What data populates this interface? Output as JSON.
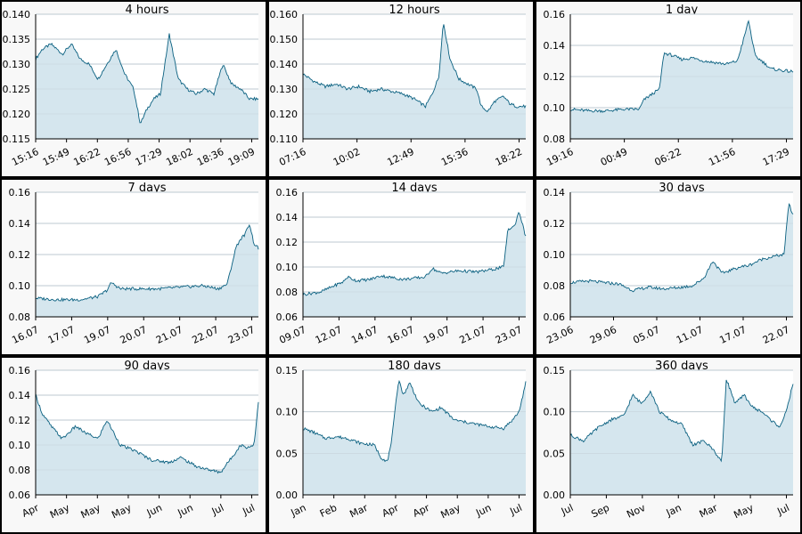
{
  "colors": {
    "line": "#0a6080",
    "fill": "#d5e6ee",
    "grid": "#bfcbd1",
    "panel_bg": "#f8f8f8",
    "plot_bg": "#ffffff"
  },
  "chart_data": [
    {
      "type": "area",
      "title": "4 hours",
      "yticks": [
        "0.115",
        "0.120",
        "0.125",
        "0.130",
        "0.135",
        "0.140"
      ],
      "ylim": [
        0.115,
        0.14
      ],
      "xticks": [
        "15:16",
        "15:49",
        "16:22",
        "16:56",
        "17:29",
        "18:02",
        "18:36",
        "19:09"
      ],
      "x": [
        0,
        0.03,
        0.07,
        0.12,
        0.16,
        0.2,
        0.24,
        0.28,
        0.32,
        0.36,
        0.4,
        0.44,
        0.47,
        0.5,
        0.53,
        0.56,
        0.6,
        0.64,
        0.68,
        0.72,
        0.76,
        0.8,
        0.84,
        0.88,
        0.92,
        0.96,
        1
      ],
      "y": [
        0.131,
        0.133,
        0.134,
        0.132,
        0.134,
        0.131,
        0.13,
        0.127,
        0.13,
        0.133,
        0.128,
        0.125,
        0.118,
        0.121,
        0.123,
        0.124,
        0.136,
        0.127,
        0.125,
        0.124,
        0.125,
        0.124,
        0.13,
        0.126,
        0.125,
        0.123,
        0.123
      ]
    },
    {
      "type": "area",
      "title": "12 hours",
      "yticks": [
        "0.110",
        "0.120",
        "0.130",
        "0.140",
        "0.150",
        "0.160"
      ],
      "ylim": [
        0.11,
        0.16
      ],
      "xticks": [
        "07:16",
        "10:02",
        "12:49",
        "15:36",
        "18:22"
      ],
      "x": [
        0,
        0.05,
        0.1,
        0.15,
        0.2,
        0.25,
        0.3,
        0.35,
        0.4,
        0.45,
        0.5,
        0.55,
        0.58,
        0.61,
        0.63,
        0.66,
        0.7,
        0.74,
        0.78,
        0.8,
        0.83,
        0.86,
        0.9,
        0.93,
        0.96,
        1
      ],
      "y": [
        0.136,
        0.133,
        0.131,
        0.132,
        0.13,
        0.131,
        0.129,
        0.13,
        0.129,
        0.128,
        0.126,
        0.123,
        0.128,
        0.135,
        0.157,
        0.142,
        0.134,
        0.132,
        0.13,
        0.123,
        0.121,
        0.125,
        0.127,
        0.124,
        0.123,
        0.123
      ]
    },
    {
      "type": "area",
      "title": "1 day",
      "yticks": [
        "0.08",
        "0.10",
        "0.12",
        "0.14",
        "0.16"
      ],
      "ylim": [
        0.08,
        0.16
      ],
      "xticks": [
        "19:16",
        "00:49",
        "06:22",
        "11:56",
        "17:29"
      ],
      "x": [
        0,
        0.08,
        0.16,
        0.24,
        0.31,
        0.33,
        0.36,
        0.4,
        0.42,
        0.45,
        0.5,
        0.55,
        0.6,
        0.65,
        0.7,
        0.75,
        0.78,
        0.8,
        0.83,
        0.86,
        0.9,
        0.95,
        1
      ],
      "y": [
        0.099,
        0.098,
        0.098,
        0.099,
        0.099,
        0.105,
        0.108,
        0.112,
        0.135,
        0.134,
        0.131,
        0.132,
        0.13,
        0.129,
        0.128,
        0.13,
        0.145,
        0.156,
        0.133,
        0.13,
        0.125,
        0.124,
        0.123
      ]
    },
    {
      "type": "area",
      "title": "7 days",
      "yticks": [
        "0.08",
        "0.10",
        "0.12",
        "0.14",
        "0.16"
      ],
      "ylim": [
        0.08,
        0.16
      ],
      "xticks": [
        "16.07",
        "17.07",
        "19.07",
        "20.07",
        "21.07",
        "22.07",
        "23.07"
      ],
      "x": [
        0,
        0.1,
        0.2,
        0.28,
        0.32,
        0.34,
        0.38,
        0.45,
        0.55,
        0.65,
        0.75,
        0.82,
        0.86,
        0.9,
        0.92,
        0.94,
        0.96,
        0.98,
        1
      ],
      "y": [
        0.092,
        0.091,
        0.091,
        0.093,
        0.097,
        0.102,
        0.098,
        0.098,
        0.098,
        0.099,
        0.1,
        0.098,
        0.101,
        0.125,
        0.13,
        0.133,
        0.14,
        0.127,
        0.124
      ]
    },
    {
      "type": "area",
      "title": "14 days",
      "yticks": [
        "0.06",
        "0.08",
        "0.10",
        "0.12",
        "0.14",
        "0.16"
      ],
      "ylim": [
        0.06,
        0.16
      ],
      "xticks": [
        "09.07",
        "12.07",
        "14.07",
        "16.07",
        "19.07",
        "21.07",
        "23.07"
      ],
      "x": [
        0,
        0.08,
        0.14,
        0.18,
        0.2,
        0.24,
        0.3,
        0.35,
        0.45,
        0.55,
        0.58,
        0.62,
        0.7,
        0.78,
        0.85,
        0.9,
        0.92,
        0.95,
        0.97,
        1
      ],
      "y": [
        0.078,
        0.08,
        0.085,
        0.088,
        0.092,
        0.089,
        0.09,
        0.093,
        0.09,
        0.092,
        0.099,
        0.095,
        0.097,
        0.096,
        0.098,
        0.1,
        0.13,
        0.133,
        0.145,
        0.124
      ]
    },
    {
      "type": "area",
      "title": "30 days",
      "yticks": [
        "0.06",
        "0.08",
        "0.10",
        "0.12",
        "0.14"
      ],
      "ylim": [
        0.06,
        0.14
      ],
      "xticks": [
        "23.06",
        "29.06",
        "05.07",
        "11.07",
        "17.07",
        "22.07"
      ],
      "x": [
        0,
        0.08,
        0.15,
        0.22,
        0.28,
        0.35,
        0.42,
        0.5,
        0.55,
        0.6,
        0.64,
        0.68,
        0.72,
        0.76,
        0.8,
        0.86,
        0.92,
        0.96,
        0.98,
        1
      ],
      "y": [
        0.082,
        0.083,
        0.082,
        0.081,
        0.077,
        0.079,
        0.078,
        0.079,
        0.08,
        0.085,
        0.096,
        0.088,
        0.09,
        0.092,
        0.093,
        0.097,
        0.099,
        0.1,
        0.133,
        0.125
      ]
    },
    {
      "type": "area",
      "title": "90 days",
      "yticks": [
        "0.06",
        "0.08",
        "0.10",
        "0.12",
        "0.14",
        "0.16"
      ],
      "ylim": [
        0.06,
        0.16
      ],
      "xticks": [
        "Apr",
        "May",
        "May",
        "May",
        "Jun",
        "Jun",
        "Jul",
        "Jul"
      ],
      "x": [
        0,
        0.03,
        0.07,
        0.12,
        0.18,
        0.22,
        0.28,
        0.32,
        0.38,
        0.45,
        0.52,
        0.6,
        0.65,
        0.72,
        0.78,
        0.83,
        0.88,
        0.92,
        0.95,
        0.98,
        1
      ],
      "y": [
        0.14,
        0.125,
        0.115,
        0.105,
        0.115,
        0.11,
        0.105,
        0.12,
        0.1,
        0.095,
        0.088,
        0.086,
        0.09,
        0.083,
        0.08,
        0.078,
        0.09,
        0.1,
        0.098,
        0.1,
        0.135
      ]
    },
    {
      "type": "area",
      "title": "180 days",
      "yticks": [
        "0.00",
        "0.05",
        "0.10",
        "0.15"
      ],
      "ylim": [
        0,
        0.15
      ],
      "xticks": [
        "Jan",
        "Feb",
        "Mar",
        "Apr",
        "Apr",
        "May",
        "Jun",
        "Jul"
      ],
      "x": [
        0,
        0.05,
        0.1,
        0.15,
        0.2,
        0.26,
        0.32,
        0.35,
        0.38,
        0.4,
        0.43,
        0.45,
        0.48,
        0.52,
        0.58,
        0.62,
        0.68,
        0.72,
        0.78,
        0.84,
        0.9,
        0.94,
        0.97,
        1
      ],
      "y": [
        0.08,
        0.075,
        0.068,
        0.07,
        0.068,
        0.062,
        0.06,
        0.045,
        0.04,
        0.07,
        0.14,
        0.12,
        0.135,
        0.11,
        0.1,
        0.105,
        0.09,
        0.088,
        0.085,
        0.082,
        0.08,
        0.09,
        0.1,
        0.135
      ]
    },
    {
      "type": "area",
      "title": "360 days",
      "yticks": [
        "0.00",
        "0.05",
        "0.10",
        "0.15"
      ],
      "ylim": [
        0,
        0.15
      ],
      "xticks": [
        "Jul",
        "Sep",
        "Nov",
        "Jan",
        "Mar",
        "May",
        "Jul"
      ],
      "x": [
        0,
        0.06,
        0.12,
        0.18,
        0.24,
        0.28,
        0.32,
        0.36,
        0.4,
        0.45,
        0.5,
        0.55,
        0.6,
        0.64,
        0.68,
        0.7,
        0.74,
        0.78,
        0.82,
        0.86,
        0.9,
        0.94,
        0.97,
        1
      ],
      "y": [
        0.072,
        0.065,
        0.08,
        0.09,
        0.095,
        0.12,
        0.11,
        0.125,
        0.1,
        0.09,
        0.085,
        0.06,
        0.065,
        0.055,
        0.04,
        0.14,
        0.11,
        0.12,
        0.105,
        0.1,
        0.09,
        0.082,
        0.1,
        0.135
      ]
    }
  ]
}
